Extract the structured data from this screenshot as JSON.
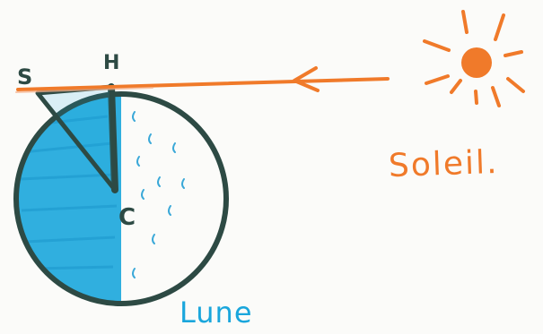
{
  "labels": {
    "s": "S",
    "h": "H",
    "c": "C",
    "sun": "Soleil.",
    "moon": "Lune"
  },
  "colors": {
    "ink": "#2d4a44",
    "shadow_side": "#1aa6dc",
    "sun": "#f07a2a",
    "ray": "#f07a2a",
    "paper": "#fbfbf9"
  }
}
